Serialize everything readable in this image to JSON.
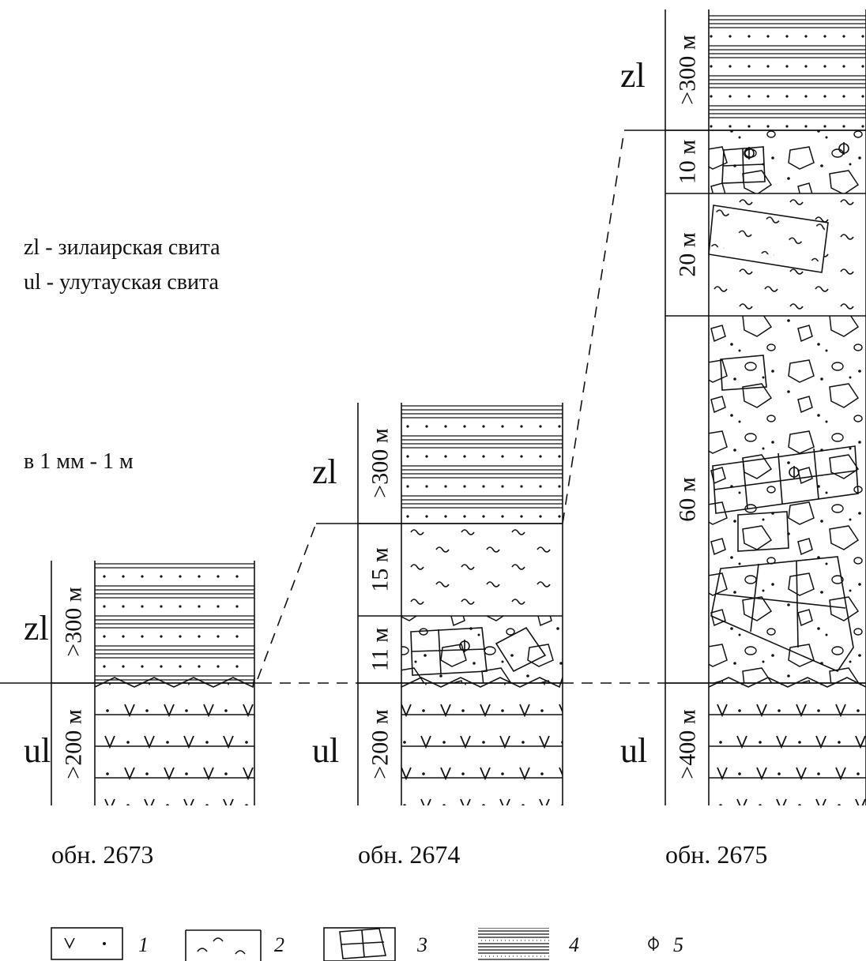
{
  "notes": [
    "zl - зилаирская свита",
    "ul - улутауская свита"
  ],
  "scale": "в 1 мм - 1 м",
  "columns": [
    {
      "caption": "обн. 2673",
      "formations": [
        "zl",
        "ul"
      ],
      "intervals": [
        ">300 м",
        ">200 м"
      ]
    },
    {
      "caption": "обн. 2674",
      "formations": [
        "zl",
        "ul"
      ],
      "intervals": [
        ">300 м",
        "15 м",
        "11 м",
        ">200 м"
      ]
    },
    {
      "caption": "обн. 2675",
      "formations": [
        "zl",
        "ul"
      ],
      "intervals": [
        ">300 м",
        "10 м",
        "20 м",
        "60 м",
        ">400 м"
      ]
    }
  ],
  "legend": [
    "1",
    "2",
    "3",
    "4",
    "5"
  ]
}
